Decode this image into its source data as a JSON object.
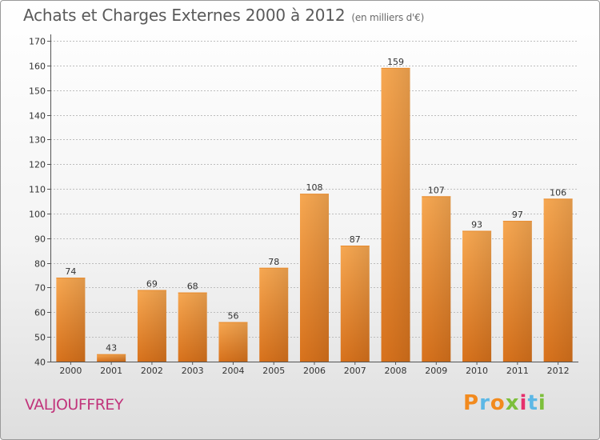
{
  "header": {
    "title": "Achats et Charges Externes 2000 à 2012",
    "subtitle": "(en milliers d'€)"
  },
  "footer": {
    "commune": "VALJOUFFREY",
    "brand": "Proxiti"
  },
  "colors": {
    "bar_light": "#f7a852",
    "bar_dark": "#d8721c",
    "commune_text": "#c1347b",
    "brand_letters": [
      "#f28a1e",
      "#5cb8e6",
      "#f28a1e",
      "#7dbf3b",
      "#e6306c",
      "#5cb8e6",
      "#7dbf3b"
    ]
  },
  "chart_data": {
    "type": "bar",
    "title": "Achats et Charges Externes 2000 à 2012",
    "subtitle": "(en milliers d'€)",
    "categories": [
      "2000",
      "2001",
      "2002",
      "2003",
      "2004",
      "2005",
      "2006",
      "2007",
      "2008",
      "2009",
      "2010",
      "2011",
      "2012"
    ],
    "values": [
      74,
      43,
      69,
      68,
      56,
      78,
      108,
      87,
      159,
      107,
      93,
      97,
      106
    ],
    "ylim": [
      40,
      170
    ],
    "yticks": [
      40,
      50,
      60,
      70,
      80,
      90,
      100,
      110,
      120,
      130,
      140,
      150,
      160,
      170
    ],
    "grid": true,
    "data_labels": true
  }
}
